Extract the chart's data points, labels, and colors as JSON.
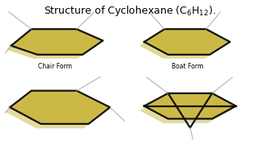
{
  "title": "Structure of Cyclohexane (C$_6$H$_{12}$).",
  "bg": "#ffffff",
  "gold": "#ccb945",
  "gold_shadow": "#c8b840",
  "lc": "#111111",
  "tlc": "#aaaaaa",
  "lw_thick": 1.6,
  "lw_thin": 0.7,
  "label_chair": "Chair Form",
  "label_boat": "Boat Form",
  "title_fs": 9,
  "label_fs": 5.5
}
